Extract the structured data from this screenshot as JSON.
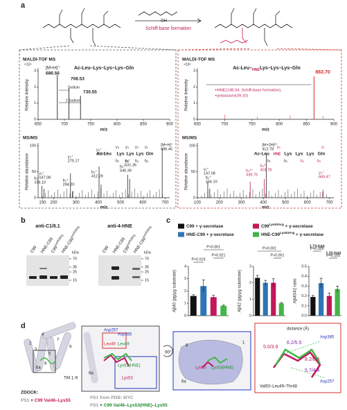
{
  "panel_a": {
    "label": "a",
    "reaction": "Schiff-base formation",
    "reactant_group": "OH",
    "left": {
      "ms_title": "MALDI-TOF MS",
      "scale": "×10⁴",
      "peptide": "Ac-Leu–Lys–Lys–Lys–Gln",
      "ylabel": "Relative Intensity",
      "yticks": [
        0,
        1,
        2,
        3
      ],
      "peak_ion": "[M+H]⁺",
      "peaks": [
        "686.56",
        "708.53",
        "730.55"
      ],
      "sodium": "Sodium",
      "sodium2": "2 Sodium",
      "xticks": [
        650,
        700,
        750,
        800,
        850,
        900
      ],
      "xlabel": "m/z",
      "msms_title": "MS/MS",
      "msms_ylabel": "Relative abundance",
      "msms_yticks": [
        0,
        50,
        100
      ],
      "fragments": [
        {
          "ion": "y₁⁺",
          "mz": "147.08"
        },
        {
          "ion": "b₂⁺",
          "mz": "156.10"
        },
        {
          "ion": "y₂⁺",
          "mz": "275.17"
        },
        {
          "ion": "b₃⁺",
          "mz": "284.20"
        },
        {
          "ion": "y₃⁺",
          "mz": "403.27"
        },
        {
          "ion": "b₄⁺",
          "mz": "412.29"
        },
        {
          "ion": "y₄⁺",
          "mz": "531.36"
        },
        {
          "ion": "b₅⁺",
          "mz": "540.39"
        },
        {
          "ion": "[M+H]⁺",
          "mz": "686.46"
        }
      ],
      "map_sequence": [
        "Ac-Leu",
        "Lys",
        "Lys",
        "Lys",
        "Gln"
      ],
      "map_top": [
        "y₄",
        "y₃",
        "y₂",
        "y₁"
      ],
      "map_bottom": [
        "b₂",
        "b₃",
        "b₄",
        "b₅"
      ],
      "msms_xticks": [
        150,
        200,
        300,
        400,
        500,
        600,
        700
      ]
    },
    "right": {
      "ms_title": "MALDI-TOF MS",
      "scale": "×10⁴",
      "peptide": [
        "Ac-Leu–",
        "HNE",
        "Lys–Lys–Lys–Gln"
      ],
      "ylabel": "Relative Intensity",
      "yticks": [
        0,
        1,
        2,
        3
      ],
      "peak": "863.70",
      "annotation": [
        "+HNE(138.04, Schiff-base formation),",
        "+potassium(39.10)"
      ],
      "xticks": [
        650,
        700,
        750,
        800,
        850,
        900
      ],
      "xlabel": "m/z",
      "msms_title": "MS/MS",
      "msms_ylabel": "Relative abundance",
      "msms_yticks": [
        0,
        50,
        100
      ],
      "fragments": [
        {
          "ion": "y₁⁺",
          "mz": "147.08"
        },
        {
          "ion": "b₂⁺",
          "mz": "156.10"
        },
        {
          "ion": "b₃²⁺",
          "mz": "339.75"
        },
        {
          "ion": "b₄²⁺",
          "mz": "403.78"
        },
        {
          "ion": "[M+2H]²⁺",
          "mz": "412.78"
        },
        {
          "ion": "y₅⁺",
          "mz": "669.47"
        }
      ],
      "map_sequence": [
        "Ac-Leu",
        "HNE",
        "Lys",
        "Lys",
        "Lys",
        "Gln"
      ],
      "map_top": [
        "y₅",
        "y₁"
      ],
      "map_bottom": [
        "b₁",
        "b₂",
        "b₄",
        "b₅"
      ],
      "msms_xticks": [
        100,
        200,
        300,
        400,
        500,
        600,
        700
      ]
    }
  },
  "panel_b": {
    "label": "b",
    "blots": [
      {
        "title": "anti-C1/6.1",
        "lanes": [
          [
            "C99",
            ""
          ],
          [
            "HNE-C99",
            ""
          ],
          [
            "C99",
            "Lys53Arg"
          ],
          [
            "HNE-C99",
            "Lys53Arg"
          ]
        ],
        "unit": "kDa",
        "markers": [
          70,
          35,
          25,
          15
        ]
      },
      {
        "title": "anti-4-HNE",
        "lanes": [
          [
            "C99",
            ""
          ],
          [
            "HNE-C99",
            ""
          ],
          [
            "C99",
            "Lys53Arg"
          ],
          [
            "HNE-C99",
            "Lys53Arg"
          ]
        ],
        "unit": "kDa",
        "markers": [
          70,
          35,
          25,
          15
        ]
      }
    ]
  },
  "panel_c": {
    "label": "c",
    "legend": [
      {
        "name": "C99",
        "sup": "",
        "suffix": " + γ-secretase",
        "color": "#111111"
      },
      {
        "name": "HNE-C99",
        "sup": "",
        "suffix": " + γ-secretase",
        "color": "#2e75b6"
      },
      {
        "name": "C99",
        "sup": "Lys53Arg",
        "suffix": " + γ-secretase",
        "color": "#c2185b"
      },
      {
        "name": "HNE-C99",
        "sup": "Lys53Arg",
        "suffix": " + γ-secretase",
        "color": "#43b649"
      }
    ],
    "charts": [
      {
        "type": "bar",
        "ylabel": "Aβ40 (pg/μg substrate)",
        "ylim": [
          0,
          4
        ],
        "yticks": [
          0,
          1,
          2,
          3,
          4
        ],
        "values": [
          1.6,
          2.4,
          1.5,
          0.8
        ],
        "errors": [
          0.1,
          0.5,
          0.15,
          0.06
        ],
        "annotations": [
          "P=0.019",
          "P<0.001",
          "P=0.021"
        ]
      },
      {
        "type": "bar",
        "ylabel": "Aβ42 (pg/μg substrate)",
        "ylim": [
          0,
          3
        ],
        "yticks": [
          0,
          1,
          2,
          3
        ],
        "values": [
          2.3,
          2.0,
          2.0,
          0.75
        ],
        "errors": [
          0.15,
          0.15,
          0.25,
          0.05
        ],
        "annotations": [
          "P<0.001",
          "P<0.001"
        ]
      },
      {
        "type": "bar",
        "ylabel": "Aβ40/42 ratio",
        "ylim": [
          0,
          0.5
        ],
        "yticks": [
          {
            "value": 0,
            "label": "0.0"
          },
          0.1,
          0.2,
          0.3,
          0.4,
          0.5
        ],
        "values": [
          0.19,
          0.33,
          0.2,
          0.27
        ],
        "errors": [
          0.015,
          0.05,
          0.03,
          0.03
        ],
        "annotations": [
          "1.73-fold",
          "P=0.005",
          "1.32-fold",
          "P=0.105"
        ]
      }
    ]
  },
  "panel_d": {
    "label": "d",
    "helices": [
      "2",
      "3",
      "4",
      "5",
      "6a",
      "7",
      "8",
      "9"
    ],
    "tm": "TM 1-9",
    "zoom1": [
      "Asp257",
      "Asp385",
      "Leu49",
      "Leu49",
      "Lys53(HNE)",
      "Lys53",
      "6a"
    ],
    "rotation": "90°",
    "zoom2": [
      "8",
      "1",
      "6a",
      "Lys53",
      "Lys53(HNE)"
    ],
    "distance_title": "distance (Å)",
    "distances": [
      "5.0/3.9",
      "6.2/5.5",
      "8.2/8.6",
      "5.7/4.4"
    ],
    "zoom3": [
      "Asp385",
      "Asp257",
      "Val50–Leu49–Thr48"
    ],
    "caption_left": [
      "ZDOCK:",
      "PS1",
      " + ",
      "C99 Val46–Lys55"
    ],
    "caption_right": [
      "PS1 from PDB: 6IYC",
      "PS1",
      " + ",
      "C99 Val46–Lys53(HNE)–Lys55"
    ]
  }
}
